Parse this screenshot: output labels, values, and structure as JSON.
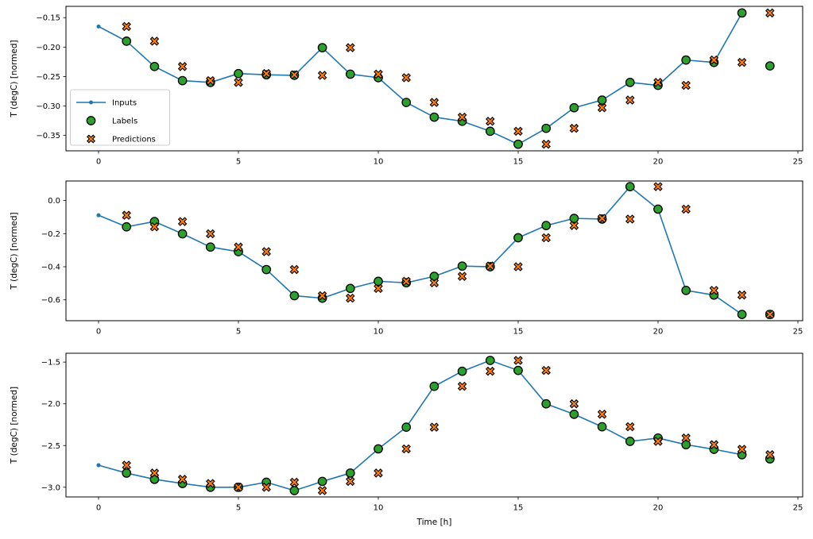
{
  "figure_type": "matplotlib-multi-line-figure",
  "colors": {
    "inputs_line": "#1f77b4",
    "labels_marker": "#2ca02c",
    "predictions_marker": "#ff7f0e",
    "marker_edge": "#000000",
    "axis": "#000000",
    "legend_border": "#cccccc",
    "background": "#ffffff"
  },
  "legend": {
    "subplot": "top",
    "position": "center-left-inside",
    "entries": [
      {
        "label": "Inputs",
        "marker": "line-with-dot",
        "color": "#1f77b4"
      },
      {
        "label": "Labels",
        "marker": "circle",
        "fill": "#2ca02c",
        "edge": "#000000"
      },
      {
        "label": "Predictions",
        "marker": "thick-x",
        "fill": "#ff7f0e",
        "edge": "#000000"
      }
    ]
  },
  "chart_data": [
    {
      "type": "line",
      "title": "",
      "xlabel": "",
      "ylabel": "T (degC) [normed]",
      "grid": false,
      "xlim": [
        -1.165,
        25.17
      ],
      "ylim": [
        -0.3762,
        -0.1308
      ],
      "x_ticks": [
        0,
        5,
        10,
        15,
        20,
        25
      ],
      "x_tick_labels": [
        "0",
        "5",
        "10",
        "15",
        "20",
        "25"
      ],
      "y_ticks": [
        -0.15,
        -0.2,
        -0.25,
        -0.3,
        -0.35
      ],
      "y_tick_labels": [
        "−0.15",
        "−0.20",
        "−0.25",
        "−0.30",
        "−0.35"
      ],
      "series": [
        {
          "name": "Inputs",
          "style": "line-with-dot",
          "x": [
            0,
            1,
            2,
            3,
            4,
            5,
            6,
            7,
            8,
            9,
            10,
            11,
            12,
            13,
            14,
            15,
            16,
            17,
            18,
            19,
            20,
            21,
            22,
            23
          ],
          "y": [
            -0.165,
            -0.19,
            -0.233,
            -0.257,
            -0.26,
            -0.245,
            -0.247,
            -0.248,
            -0.201,
            -0.246,
            -0.252,
            -0.294,
            -0.319,
            -0.326,
            -0.343,
            -0.365,
            -0.338,
            -0.303,
            -0.29,
            -0.26,
            -0.265,
            -0.222,
            -0.226,
            -0.142
          ]
        },
        {
          "name": "Labels",
          "style": "scatter-circle",
          "x": [
            1,
            2,
            3,
            4,
            5,
            6,
            7,
            8,
            9,
            10,
            11,
            12,
            13,
            14,
            15,
            16,
            17,
            18,
            19,
            20,
            21,
            22,
            23,
            24
          ],
          "y": [
            -0.19,
            -0.233,
            -0.257,
            -0.26,
            -0.245,
            -0.247,
            -0.248,
            -0.201,
            -0.246,
            -0.252,
            -0.294,
            -0.319,
            -0.326,
            -0.343,
            -0.365,
            -0.338,
            -0.303,
            -0.29,
            -0.26,
            -0.265,
            -0.222,
            -0.226,
            -0.142,
            -0.232
          ]
        },
        {
          "name": "Predictions",
          "style": "scatter-x",
          "x": [
            1,
            2,
            3,
            4,
            5,
            6,
            7,
            8,
            9,
            10,
            11,
            12,
            13,
            14,
            15,
            16,
            17,
            18,
            19,
            20,
            21,
            22,
            23,
            24
          ],
          "y": [
            -0.165,
            -0.19,
            -0.233,
            -0.257,
            -0.26,
            -0.245,
            -0.247,
            -0.248,
            -0.201,
            -0.246,
            -0.252,
            -0.294,
            -0.319,
            -0.326,
            -0.343,
            -0.365,
            -0.338,
            -0.303,
            -0.29,
            -0.26,
            -0.265,
            -0.222,
            -0.226,
            -0.142
          ]
        }
      ]
    },
    {
      "type": "line",
      "title": "",
      "xlabel": "",
      "ylabel": "T (degC) [normed]",
      "grid": false,
      "xlim": [
        -1.165,
        25.17
      ],
      "ylim": [
        -0.726,
        0.118
      ],
      "x_ticks": [
        0,
        5,
        10,
        15,
        20,
        25
      ],
      "x_tick_labels": [
        "0",
        "5",
        "10",
        "15",
        "20",
        "25"
      ],
      "y_ticks": [
        0.0,
        -0.2,
        -0.4,
        -0.6
      ],
      "y_tick_labels": [
        "0.0",
        "−0.2",
        "−0.4",
        "−0.6"
      ],
      "series": [
        {
          "name": "Inputs",
          "style": "line-with-dot",
          "x": [
            0,
            1,
            2,
            3,
            4,
            5,
            6,
            7,
            8,
            9,
            10,
            11,
            12,
            13,
            14,
            15,
            16,
            17,
            18,
            19,
            20,
            21,
            22,
            23
          ],
          "y": [
            -0.089,
            -0.159,
            -0.127,
            -0.201,
            -0.281,
            -0.309,
            -0.417,
            -0.575,
            -0.59,
            -0.531,
            -0.488,
            -0.497,
            -0.458,
            -0.396,
            -0.4,
            -0.225,
            -0.151,
            -0.108,
            -0.112,
            0.084,
            -0.052,
            -0.543,
            -0.571,
            -0.688
          ]
        },
        {
          "name": "Labels",
          "style": "scatter-circle",
          "x": [
            1,
            2,
            3,
            4,
            5,
            6,
            7,
            8,
            9,
            10,
            11,
            12,
            13,
            14,
            15,
            16,
            17,
            18,
            19,
            20,
            21,
            22,
            23,
            24
          ],
          "y": [
            -0.159,
            -0.127,
            -0.201,
            -0.281,
            -0.309,
            -0.417,
            -0.575,
            -0.59,
            -0.531,
            -0.488,
            -0.497,
            -0.458,
            -0.396,
            -0.4,
            -0.225,
            -0.151,
            -0.108,
            -0.112,
            0.084,
            -0.052,
            -0.543,
            -0.571,
            -0.688,
            -0.688
          ]
        },
        {
          "name": "Predictions",
          "style": "scatter-x",
          "x": [
            1,
            2,
            3,
            4,
            5,
            6,
            7,
            8,
            9,
            10,
            11,
            12,
            13,
            14,
            15,
            16,
            17,
            18,
            19,
            20,
            21,
            22,
            23,
            24
          ],
          "y": [
            -0.089,
            -0.159,
            -0.127,
            -0.201,
            -0.281,
            -0.309,
            -0.417,
            -0.575,
            -0.59,
            -0.531,
            -0.488,
            -0.497,
            -0.458,
            -0.396,
            -0.4,
            -0.225,
            -0.151,
            -0.108,
            -0.112,
            0.084,
            -0.052,
            -0.543,
            -0.571,
            -0.688
          ]
        }
      ]
    },
    {
      "type": "line",
      "title": "",
      "xlabel": "Time [h]",
      "ylabel": "T (degC) [normed]",
      "grid": false,
      "xlim": [
        -1.165,
        25.17
      ],
      "ylim": [
        -3.116,
        -1.394
      ],
      "x_ticks": [
        0,
        5,
        10,
        15,
        20,
        25
      ],
      "x_tick_labels": [
        "0",
        "5",
        "10",
        "15",
        "20",
        "25"
      ],
      "y_ticks": [
        -1.5,
        -2.0,
        -2.5,
        -3.0
      ],
      "y_tick_labels": [
        "−1.5",
        "−2.0",
        "−2.5",
        "−3.0"
      ],
      "series": [
        {
          "name": "Inputs",
          "style": "line-with-dot",
          "x": [
            0,
            1,
            2,
            3,
            4,
            5,
            6,
            7,
            8,
            9,
            10,
            11,
            12,
            13,
            14,
            15,
            16,
            17,
            18,
            19,
            20,
            21,
            22,
            23
          ],
          "y": [
            -2.736,
            -2.83,
            -2.905,
            -2.955,
            -3.0,
            -3.0,
            -2.94,
            -3.04,
            -2.93,
            -2.83,
            -2.54,
            -2.28,
            -1.79,
            -1.61,
            -1.48,
            -1.6,
            -2.0,
            -2.125,
            -2.275,
            -2.45,
            -2.41,
            -2.49,
            -2.545,
            -2.61
          ]
        },
        {
          "name": "Labels",
          "style": "scatter-circle",
          "x": [
            1,
            2,
            3,
            4,
            5,
            6,
            7,
            8,
            9,
            10,
            11,
            12,
            13,
            14,
            15,
            16,
            17,
            18,
            19,
            20,
            21,
            22,
            23,
            24
          ],
          "y": [
            -2.83,
            -2.905,
            -2.955,
            -3.0,
            -3.0,
            -2.94,
            -3.04,
            -2.93,
            -2.83,
            -2.54,
            -2.28,
            -1.79,
            -1.61,
            -1.48,
            -1.6,
            -2.0,
            -2.125,
            -2.275,
            -2.45,
            -2.41,
            -2.49,
            -2.545,
            -2.61,
            -2.66
          ]
        },
        {
          "name": "Predictions",
          "style": "scatter-x",
          "x": [
            1,
            2,
            3,
            4,
            5,
            6,
            7,
            8,
            9,
            10,
            11,
            12,
            13,
            14,
            15,
            16,
            17,
            18,
            19,
            20,
            21,
            22,
            23,
            24
          ],
          "y": [
            -2.736,
            -2.83,
            -2.905,
            -2.955,
            -3.0,
            -3.0,
            -2.94,
            -3.04,
            -2.93,
            -2.83,
            -2.54,
            -2.28,
            -1.79,
            -1.61,
            -1.48,
            -1.6,
            -2.0,
            -2.125,
            -2.275,
            -2.45,
            -2.41,
            -2.49,
            -2.545,
            -2.61
          ]
        }
      ]
    }
  ]
}
